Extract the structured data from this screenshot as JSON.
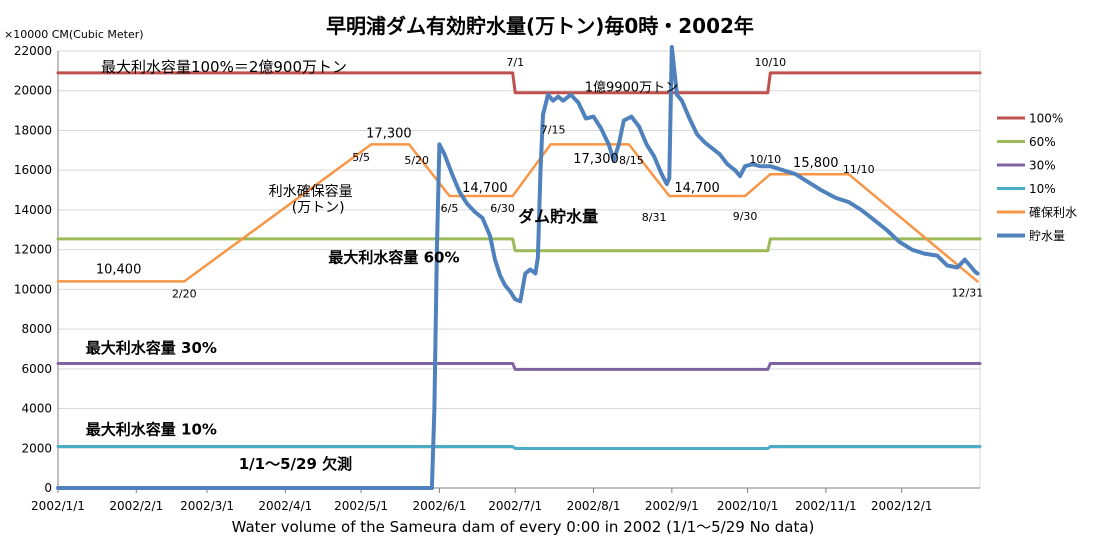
{
  "chart_data": {
    "type": "line",
    "title": "早明浦ダム有効貯水量(万トン)毎0時・2002年",
    "ylabel": "×10000 CM(Cubic Meter)",
    "xlabel": "Water volume of the Sameura dam of every 0:00 in 2002 (1/1～5/29 No data)",
    "ylim": [
      0,
      22000
    ],
    "yticks": [
      0,
      2000,
      4000,
      6000,
      8000,
      10000,
      12000,
      14000,
      16000,
      18000,
      20000,
      22000
    ],
    "xlim": [
      "2002-01-01",
      "2003-01-01"
    ],
    "xticks": [
      {
        "date": "2002-01-01",
        "label": "2002/1/1"
      },
      {
        "date": "2002-02-01",
        "label": "2002/2/1"
      },
      {
        "date": "2002-03-01",
        "label": "2002/3/1"
      },
      {
        "date": "2002-04-01",
        "label": "2002/4/1"
      },
      {
        "date": "2002-05-01",
        "label": "2002/5/1"
      },
      {
        "date": "2002-06-01",
        "label": "2002/6/1"
      },
      {
        "date": "2002-07-01",
        "label": "2002/7/1"
      },
      {
        "date": "2002-08-01",
        "label": "2002/8/1"
      },
      {
        "date": "2002-09-01",
        "label": "2002/9/1"
      },
      {
        "date": "2002-10-01",
        "label": "2002/10/1"
      },
      {
        "date": "2002-11-01",
        "label": "2002/11/1"
      },
      {
        "date": "2002-12-01",
        "label": "2002/12/1"
      }
    ],
    "grid": true,
    "legend_position": "right",
    "series": [
      {
        "name": "100%",
        "color": "#c0504d",
        "width": 3,
        "points": [
          [
            "2002-01-01",
            20900
          ],
          [
            "2002-06-30",
            20900
          ],
          [
            "2002-07-01",
            19900
          ],
          [
            "2002-10-09",
            19900
          ],
          [
            "2002-10-10",
            20900
          ],
          [
            "2003-01-01",
            20900
          ]
        ]
      },
      {
        "name": "60%",
        "color": "#9bbb59",
        "width": 3,
        "points": [
          [
            "2002-01-01",
            12540
          ],
          [
            "2002-06-30",
            12540
          ],
          [
            "2002-07-01",
            11940
          ],
          [
            "2002-10-09",
            11940
          ],
          [
            "2002-10-10",
            12540
          ],
          [
            "2003-01-01",
            12540
          ]
        ]
      },
      {
        "name": "30%",
        "color": "#8064a2",
        "width": 3,
        "points": [
          [
            "2002-01-01",
            6270
          ],
          [
            "2002-06-30",
            6270
          ],
          [
            "2002-07-01",
            5970
          ],
          [
            "2002-10-09",
            5970
          ],
          [
            "2002-10-10",
            6270
          ],
          [
            "2003-01-01",
            6270
          ]
        ]
      },
      {
        "name": "10%",
        "color": "#4bacc6",
        "width": 3,
        "points": [
          [
            "2002-01-01",
            2090
          ],
          [
            "2002-06-30",
            2090
          ],
          [
            "2002-07-01",
            1990
          ],
          [
            "2002-10-09",
            1990
          ],
          [
            "2002-10-10",
            2090
          ],
          [
            "2003-01-01",
            2090
          ]
        ]
      },
      {
        "name": "確保利水",
        "color": "#f79646",
        "width": 2.5,
        "points": [
          [
            "2002-01-01",
            10400
          ],
          [
            "2002-02-20",
            10400
          ],
          [
            "2002-05-05",
            17300
          ],
          [
            "2002-05-20",
            17300
          ],
          [
            "2002-06-05",
            14700
          ],
          [
            "2002-06-30",
            14700
          ],
          [
            "2002-07-15",
            17300
          ],
          [
            "2002-08-15",
            17300
          ],
          [
            "2002-08-31",
            14700
          ],
          [
            "2002-09-30",
            14700
          ],
          [
            "2002-10-10",
            15800
          ],
          [
            "2002-11-10",
            15800
          ],
          [
            "2002-12-31",
            10400
          ]
        ]
      },
      {
        "name": "貯水量",
        "color": "#4f81bd",
        "width": 4,
        "points": [
          [
            "2002-01-01",
            0
          ],
          [
            "2002-05-29",
            0
          ],
          [
            "2002-05-30",
            4000
          ],
          [
            "2002-05-31",
            12000
          ],
          [
            "2002-06-01",
            17300
          ],
          [
            "2002-06-03",
            16800
          ],
          [
            "2002-06-06",
            15800
          ],
          [
            "2002-06-09",
            14900
          ],
          [
            "2002-06-12",
            14300
          ],
          [
            "2002-06-15",
            13900
          ],
          [
            "2002-06-18",
            13600
          ],
          [
            "2002-06-21",
            12700
          ],
          [
            "2002-06-23",
            11500
          ],
          [
            "2002-06-25",
            10700
          ],
          [
            "2002-06-27",
            10200
          ],
          [
            "2002-06-29",
            9900
          ],
          [
            "2002-07-01",
            9500
          ],
          [
            "2002-07-03",
            9400
          ],
          [
            "2002-07-05",
            10800
          ],
          [
            "2002-07-07",
            11000
          ],
          [
            "2002-07-09",
            10800
          ],
          [
            "2002-07-10",
            11600
          ],
          [
            "2002-07-11",
            16000
          ],
          [
            "2002-07-12",
            18800
          ],
          [
            "2002-07-14",
            19800
          ],
          [
            "2002-07-16",
            19500
          ],
          [
            "2002-07-18",
            19700
          ],
          [
            "2002-07-20",
            19500
          ],
          [
            "2002-07-23",
            19800
          ],
          [
            "2002-07-26",
            19400
          ],
          [
            "2002-07-29",
            18600
          ],
          [
            "2002-08-01",
            18700
          ],
          [
            "2002-08-04",
            18100
          ],
          [
            "2002-08-07",
            17300
          ],
          [
            "2002-08-09",
            16500
          ],
          [
            "2002-08-11",
            17300
          ],
          [
            "2002-08-13",
            18500
          ],
          [
            "2002-08-16",
            18700
          ],
          [
            "2002-08-19",
            18200
          ],
          [
            "2002-08-22",
            17300
          ],
          [
            "2002-08-25",
            16700
          ],
          [
            "2002-08-28",
            15800
          ],
          [
            "2002-08-30",
            15300
          ],
          [
            "2002-08-31",
            15600
          ],
          [
            "2002-09-01",
            22200
          ],
          [
            "2002-09-02",
            21000
          ],
          [
            "2002-09-03",
            19800
          ],
          [
            "2002-09-05",
            19500
          ],
          [
            "2002-09-08",
            18600
          ],
          [
            "2002-09-11",
            17800
          ],
          [
            "2002-09-14",
            17400
          ],
          [
            "2002-09-17",
            17100
          ],
          [
            "2002-09-20",
            16800
          ],
          [
            "2002-09-23",
            16300
          ],
          [
            "2002-09-26",
            16000
          ],
          [
            "2002-09-28",
            15700
          ],
          [
            "2002-09-30",
            16200
          ],
          [
            "2002-10-03",
            16300
          ],
          [
            "2002-10-06",
            16200
          ],
          [
            "2002-10-10",
            16200
          ],
          [
            "2002-10-15",
            16000
          ],
          [
            "2002-10-20",
            15800
          ],
          [
            "2002-10-25",
            15400
          ],
          [
            "2002-10-30",
            15000
          ],
          [
            "2002-11-05",
            14600
          ],
          [
            "2002-11-10",
            14400
          ],
          [
            "2002-11-15",
            14000
          ],
          [
            "2002-11-20",
            13500
          ],
          [
            "2002-11-25",
            13000
          ],
          [
            "2002-11-30",
            12400
          ],
          [
            "2002-12-05",
            12000
          ],
          [
            "2002-12-10",
            11800
          ],
          [
            "2002-12-15",
            11700
          ],
          [
            "2002-12-19",
            11200
          ],
          [
            "2002-12-23",
            11100
          ],
          [
            "2002-12-26",
            11500
          ],
          [
            "2002-12-28",
            11200
          ],
          [
            "2002-12-30",
            10900
          ],
          [
            "2002-12-31",
            10800
          ]
        ]
      }
    ],
    "annotations": [
      {
        "text": "最大利水容量100%＝2億900万トン",
        "x": "2002-01-18",
        "y": 20950,
        "size": 15,
        "anchor": "start",
        "weight": "normal"
      },
      {
        "text": "1億9900万トン",
        "x": "2002-08-16",
        "y": 19950,
        "size": 13,
        "anchor": "middle",
        "weight": "normal"
      },
      {
        "text": "7/1",
        "x": "2002-07-01",
        "y": 21250,
        "size": 11,
        "anchor": "middle",
        "weight": "normal"
      },
      {
        "text": "10/10",
        "x": "2002-10-10",
        "y": 21250,
        "size": 11,
        "anchor": "middle",
        "weight": "normal"
      },
      {
        "text": "最大利水容量 60%",
        "x": "2002-05-14",
        "y": 11350,
        "size": 15,
        "anchor": "middle",
        "weight": "bold"
      },
      {
        "text": "最大利水容量 30%",
        "x": "2002-01-12",
        "y": 6800,
        "size": 15,
        "anchor": "start",
        "weight": "bold"
      },
      {
        "text": "最大利水容量 10%",
        "x": "2002-01-12",
        "y": 2700,
        "size": 15,
        "anchor": "start",
        "weight": "bold"
      },
      {
        "text": "1/1～5/29 欠測",
        "x": "2002-04-05",
        "y": 950,
        "size": 15,
        "anchor": "middle",
        "weight": "bold"
      },
      {
        "text": "ダム貯水量",
        "x": "2002-07-18",
        "y": 13400,
        "size": 16,
        "anchor": "middle",
        "weight": "bold"
      },
      {
        "text": "利水確保容量",
        "x": "2002-04-11",
        "y": 14700,
        "size": 14,
        "anchor": "middle",
        "weight": "normal"
      },
      {
        "text": "(万トン)",
        "x": "2002-04-14",
        "y": 13900,
        "size": 14,
        "anchor": "middle",
        "weight": "normal"
      },
      {
        "text": "10,400",
        "x": "2002-01-25",
        "y": 10800,
        "size": 13,
        "anchor": "middle",
        "weight": "normal"
      },
      {
        "text": "2/20",
        "x": "2002-02-20",
        "y": 9600,
        "size": 11,
        "anchor": "middle",
        "weight": "normal"
      },
      {
        "text": "17,300",
        "x": "2002-05-12",
        "y": 17650,
        "size": 13,
        "anchor": "middle",
        "weight": "normal"
      },
      {
        "text": "5/5",
        "x": "2002-05-01",
        "y": 16450,
        "size": 11,
        "anchor": "middle",
        "weight": "normal"
      },
      {
        "text": "5/20",
        "x": "2002-05-23",
        "y": 16300,
        "size": 11,
        "anchor": "middle",
        "weight": "normal"
      },
      {
        "text": "6/5",
        "x": "2002-06-05",
        "y": 13900,
        "size": 11,
        "anchor": "middle",
        "weight": "normal"
      },
      {
        "text": "14,700",
        "x": "2002-06-19",
        "y": 14900,
        "size": 13,
        "anchor": "middle",
        "weight": "normal"
      },
      {
        "text": "6/30",
        "x": "2002-06-26",
        "y": 13900,
        "size": 11,
        "anchor": "middle",
        "weight": "normal"
      },
      {
        "text": "7/15",
        "x": "2002-07-16",
        "y": 17850,
        "size": 11,
        "anchor": "middle",
        "weight": "normal"
      },
      {
        "text": "17,300",
        "x": "2002-08-02",
        "y": 16350,
        "size": 13,
        "anchor": "middle",
        "weight": "normal"
      },
      {
        "text": "8/15",
        "x": "2002-08-16",
        "y": 16300,
        "size": 11,
        "anchor": "middle",
        "weight": "normal"
      },
      {
        "text": "8/31",
        "x": "2002-08-25",
        "y": 13450,
        "size": 11,
        "anchor": "middle",
        "weight": "normal"
      },
      {
        "text": "14,700",
        "x": "2002-09-11",
        "y": 14900,
        "size": 13,
        "anchor": "middle",
        "weight": "normal"
      },
      {
        "text": "9/30",
        "x": "2002-09-30",
        "y": 13500,
        "size": 11,
        "anchor": "middle",
        "weight": "normal"
      },
      {
        "text": "10/10",
        "x": "2002-10-08",
        "y": 16350,
        "size": 11,
        "anchor": "middle",
        "weight": "normal"
      },
      {
        "text": "15,800",
        "x": "2002-10-28",
        "y": 16150,
        "size": 13,
        "anchor": "middle",
        "weight": "normal"
      },
      {
        "text": "11/10",
        "x": "2002-11-14",
        "y": 15850,
        "size": 11,
        "anchor": "middle",
        "weight": "normal"
      },
      {
        "text": "12/31",
        "x": "2002-12-27",
        "y": 9650,
        "size": 11,
        "anchor": "middle",
        "weight": "normal"
      }
    ]
  }
}
